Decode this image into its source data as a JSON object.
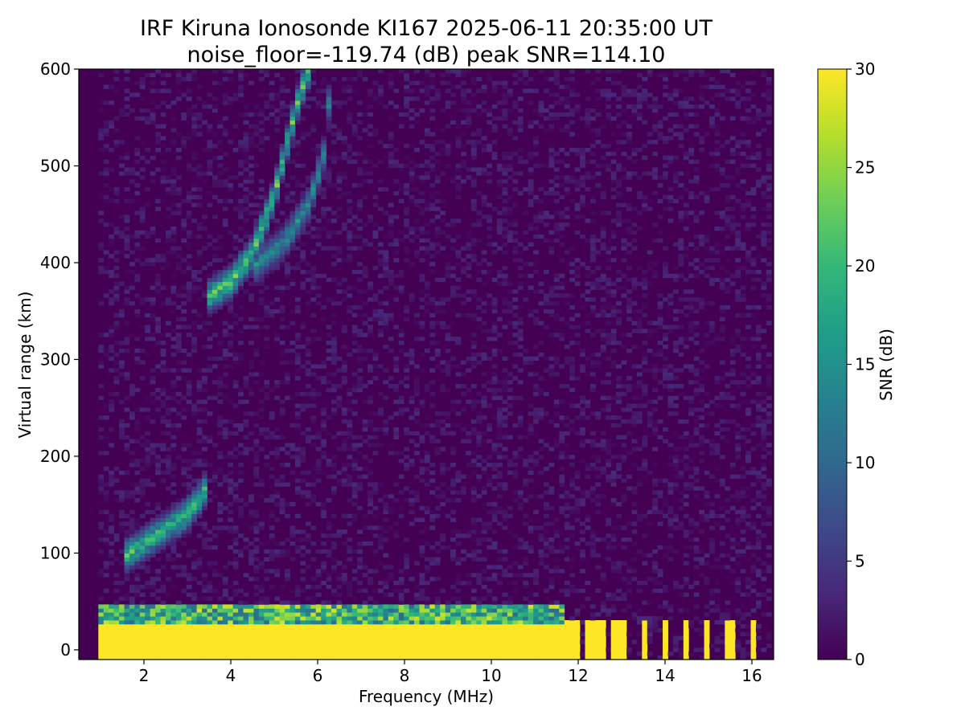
{
  "chart_data": {
    "type": "heatmap",
    "title": "IRF Kiruna Ionosonde KI167 2025-06-11 20:35:00  UT",
    "subtitle": "noise_floor=-119.74 (dB) peak SNR=114.10",
    "xlabel": "Frequency (MHz)",
    "ylabel": "Virtual range (km)",
    "xlim": [
      0.5,
      16.5
    ],
    "ylim": [
      -10,
      600
    ],
    "x_ticks": [
      2,
      4,
      6,
      8,
      10,
      12,
      14,
      16
    ],
    "y_ticks": [
      0,
      100,
      200,
      300,
      400,
      500,
      600
    ],
    "grid": false,
    "data_x_range": [
      0.95,
      16.45
    ],
    "colorbar": {
      "label": "SNR (dB)",
      "colormap": "viridis",
      "range": [
        0,
        30
      ],
      "ticks": [
        0,
        5,
        10,
        15,
        20,
        25,
        30
      ]
    },
    "colors": {
      "background": "#440154",
      "viridis_stops": [
        "#440154",
        "#482878",
        "#3e4989",
        "#31688e",
        "#26828e",
        "#1f9e89",
        "#35b779",
        "#6ece58",
        "#b5de2b",
        "#fde725"
      ]
    },
    "features": [
      {
        "name": "ground clutter band",
        "freq_range_mhz": [
          0.95,
          11.7
        ],
        "range_km": [
          -10,
          45
        ],
        "snr_db": 30
      },
      {
        "name": "E-layer trace",
        "points_mhz_km": [
          [
            1.5,
            95
          ],
          [
            2.0,
            110
          ],
          [
            2.5,
            125
          ],
          [
            3.0,
            140
          ],
          [
            3.4,
            165
          ]
        ],
        "snr_db": 24
      },
      {
        "name": "F-layer ordinary trace",
        "points_mhz_km": [
          [
            3.5,
            365
          ],
          [
            4.0,
            380
          ],
          [
            4.5,
            410
          ],
          [
            5.0,
            470
          ],
          [
            5.5,
            560
          ],
          [
            5.8,
            600
          ]
        ],
        "snr_db": 26
      },
      {
        "name": "F-layer extraordinary trace",
        "points_mhz_km": [
          [
            4.5,
            395
          ],
          [
            5.2,
            420
          ],
          [
            5.8,
            460
          ],
          [
            6.2,
            520
          ],
          [
            6.3,
            600
          ]
        ],
        "snr_db": 18
      },
      {
        "name": "discrete high-frequency channels",
        "freq_mhz": [
          11.8,
          12.0,
          12.2,
          12.4,
          12.6,
          12.8,
          13.0,
          13.5,
          14.0,
          14.5,
          15.0,
          15.5,
          16.0
        ],
        "range_km": [
          -10,
          30
        ],
        "snr_db": 30
      }
    ]
  }
}
